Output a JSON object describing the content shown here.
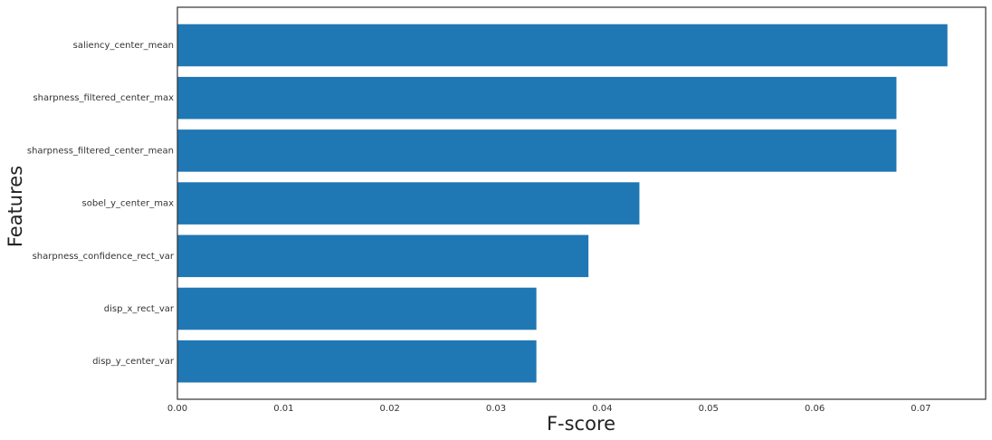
{
  "chart_data": {
    "type": "barh",
    "x_label": "F-score",
    "y_label": "Features",
    "categories": [
      "saliency_center_mean",
      "sharpness_filtered_center_max",
      "sharpness_filtered_center_mean",
      "sobel_y_center_max",
      "sharpness_confidence_rect_var",
      "disp_x_rect_var",
      "disp_y_center_var"
    ],
    "values": [
      0.0725,
      0.0677,
      0.0677,
      0.0435,
      0.0387,
      0.0338,
      0.0338
    ],
    "color": "#1f77b4",
    "xlim": [
      0,
      0.0761
    ],
    "xticks": [
      {
        "value": 0,
        "label": "0.00"
      },
      0.01,
      0.02,
      0.03,
      0.04,
      0.05,
      0.06,
      0.07
    ]
  }
}
